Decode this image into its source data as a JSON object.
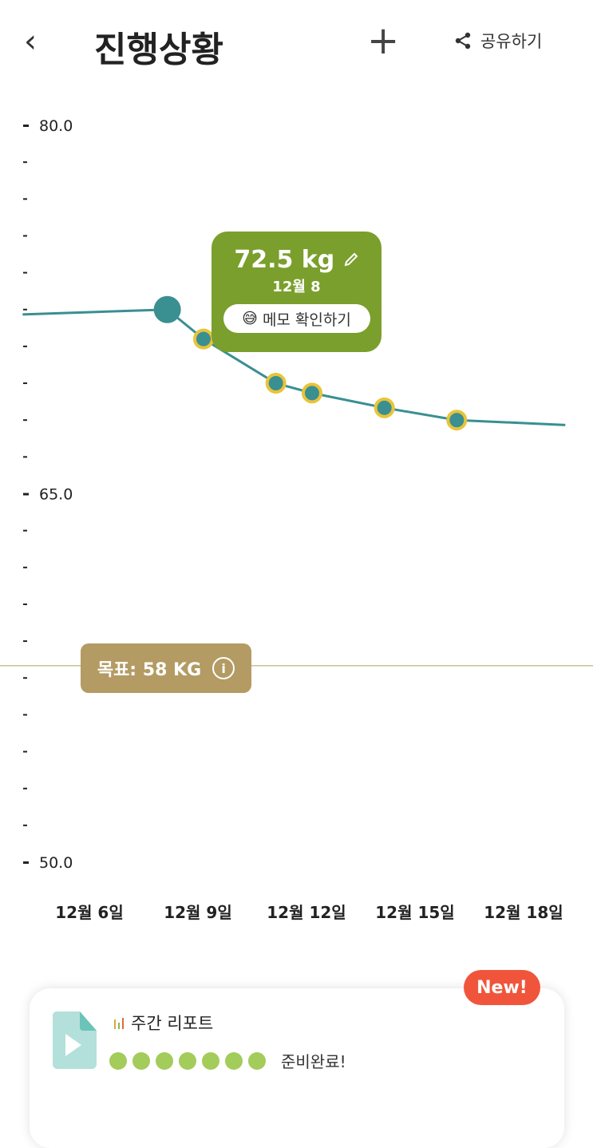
{
  "header": {
    "back_icon": "chevron-left-icon",
    "title": "진행상황",
    "add_icon": "plus-icon",
    "share_label": "공유하기",
    "share_icon": "share-icon"
  },
  "colors": {
    "line": "#3a8f91",
    "marker_fill": "#3a8f91",
    "marker_ring": "#e8c43a",
    "tooltip": "#7a9f2c",
    "goal": "#b39b63",
    "new_badge": "#f0553c",
    "dots": "#a3cc5a"
  },
  "chart_data": {
    "type": "line",
    "ylim": [
      50,
      80
    ],
    "y_labeled_ticks": [
      "80.0",
      "65.0",
      "50.0"
    ],
    "y_minor_step": 1.5,
    "x_tick_labels": [
      "12월 6일",
      "12월 9일",
      "12월 12일",
      "12월 15일",
      "12월 18일"
    ],
    "x_tick_days": [
      6,
      9,
      12,
      15,
      18
    ],
    "points": [
      {
        "day": 4,
        "value": 72.3,
        "marker": false
      },
      {
        "day": 8,
        "value": 72.5,
        "marker": "selected"
      },
      {
        "day": 9,
        "value": 71.3,
        "marker": true
      },
      {
        "day": 11,
        "value": 69.5,
        "marker": true
      },
      {
        "day": 12,
        "value": 69.1,
        "marker": true
      },
      {
        "day": 14,
        "value": 68.5,
        "marker": true
      },
      {
        "day": 16,
        "value": 68.0,
        "marker": true
      },
      {
        "day": 19,
        "value": 67.8,
        "marker": false
      }
    ],
    "goal": 58
  },
  "tooltip": {
    "value": "72.5 kg",
    "edit_icon": "pencil-icon",
    "date": "12월 8",
    "memo_emoji": "😅",
    "memo_label": "메모 확인하기"
  },
  "goal": {
    "label": "목표: 58 KG",
    "info": "i"
  },
  "report": {
    "badge": "New!",
    "title": "주간 리포트",
    "status": "준비완료!",
    "dots_filled": 7,
    "dots_total": 7
  }
}
